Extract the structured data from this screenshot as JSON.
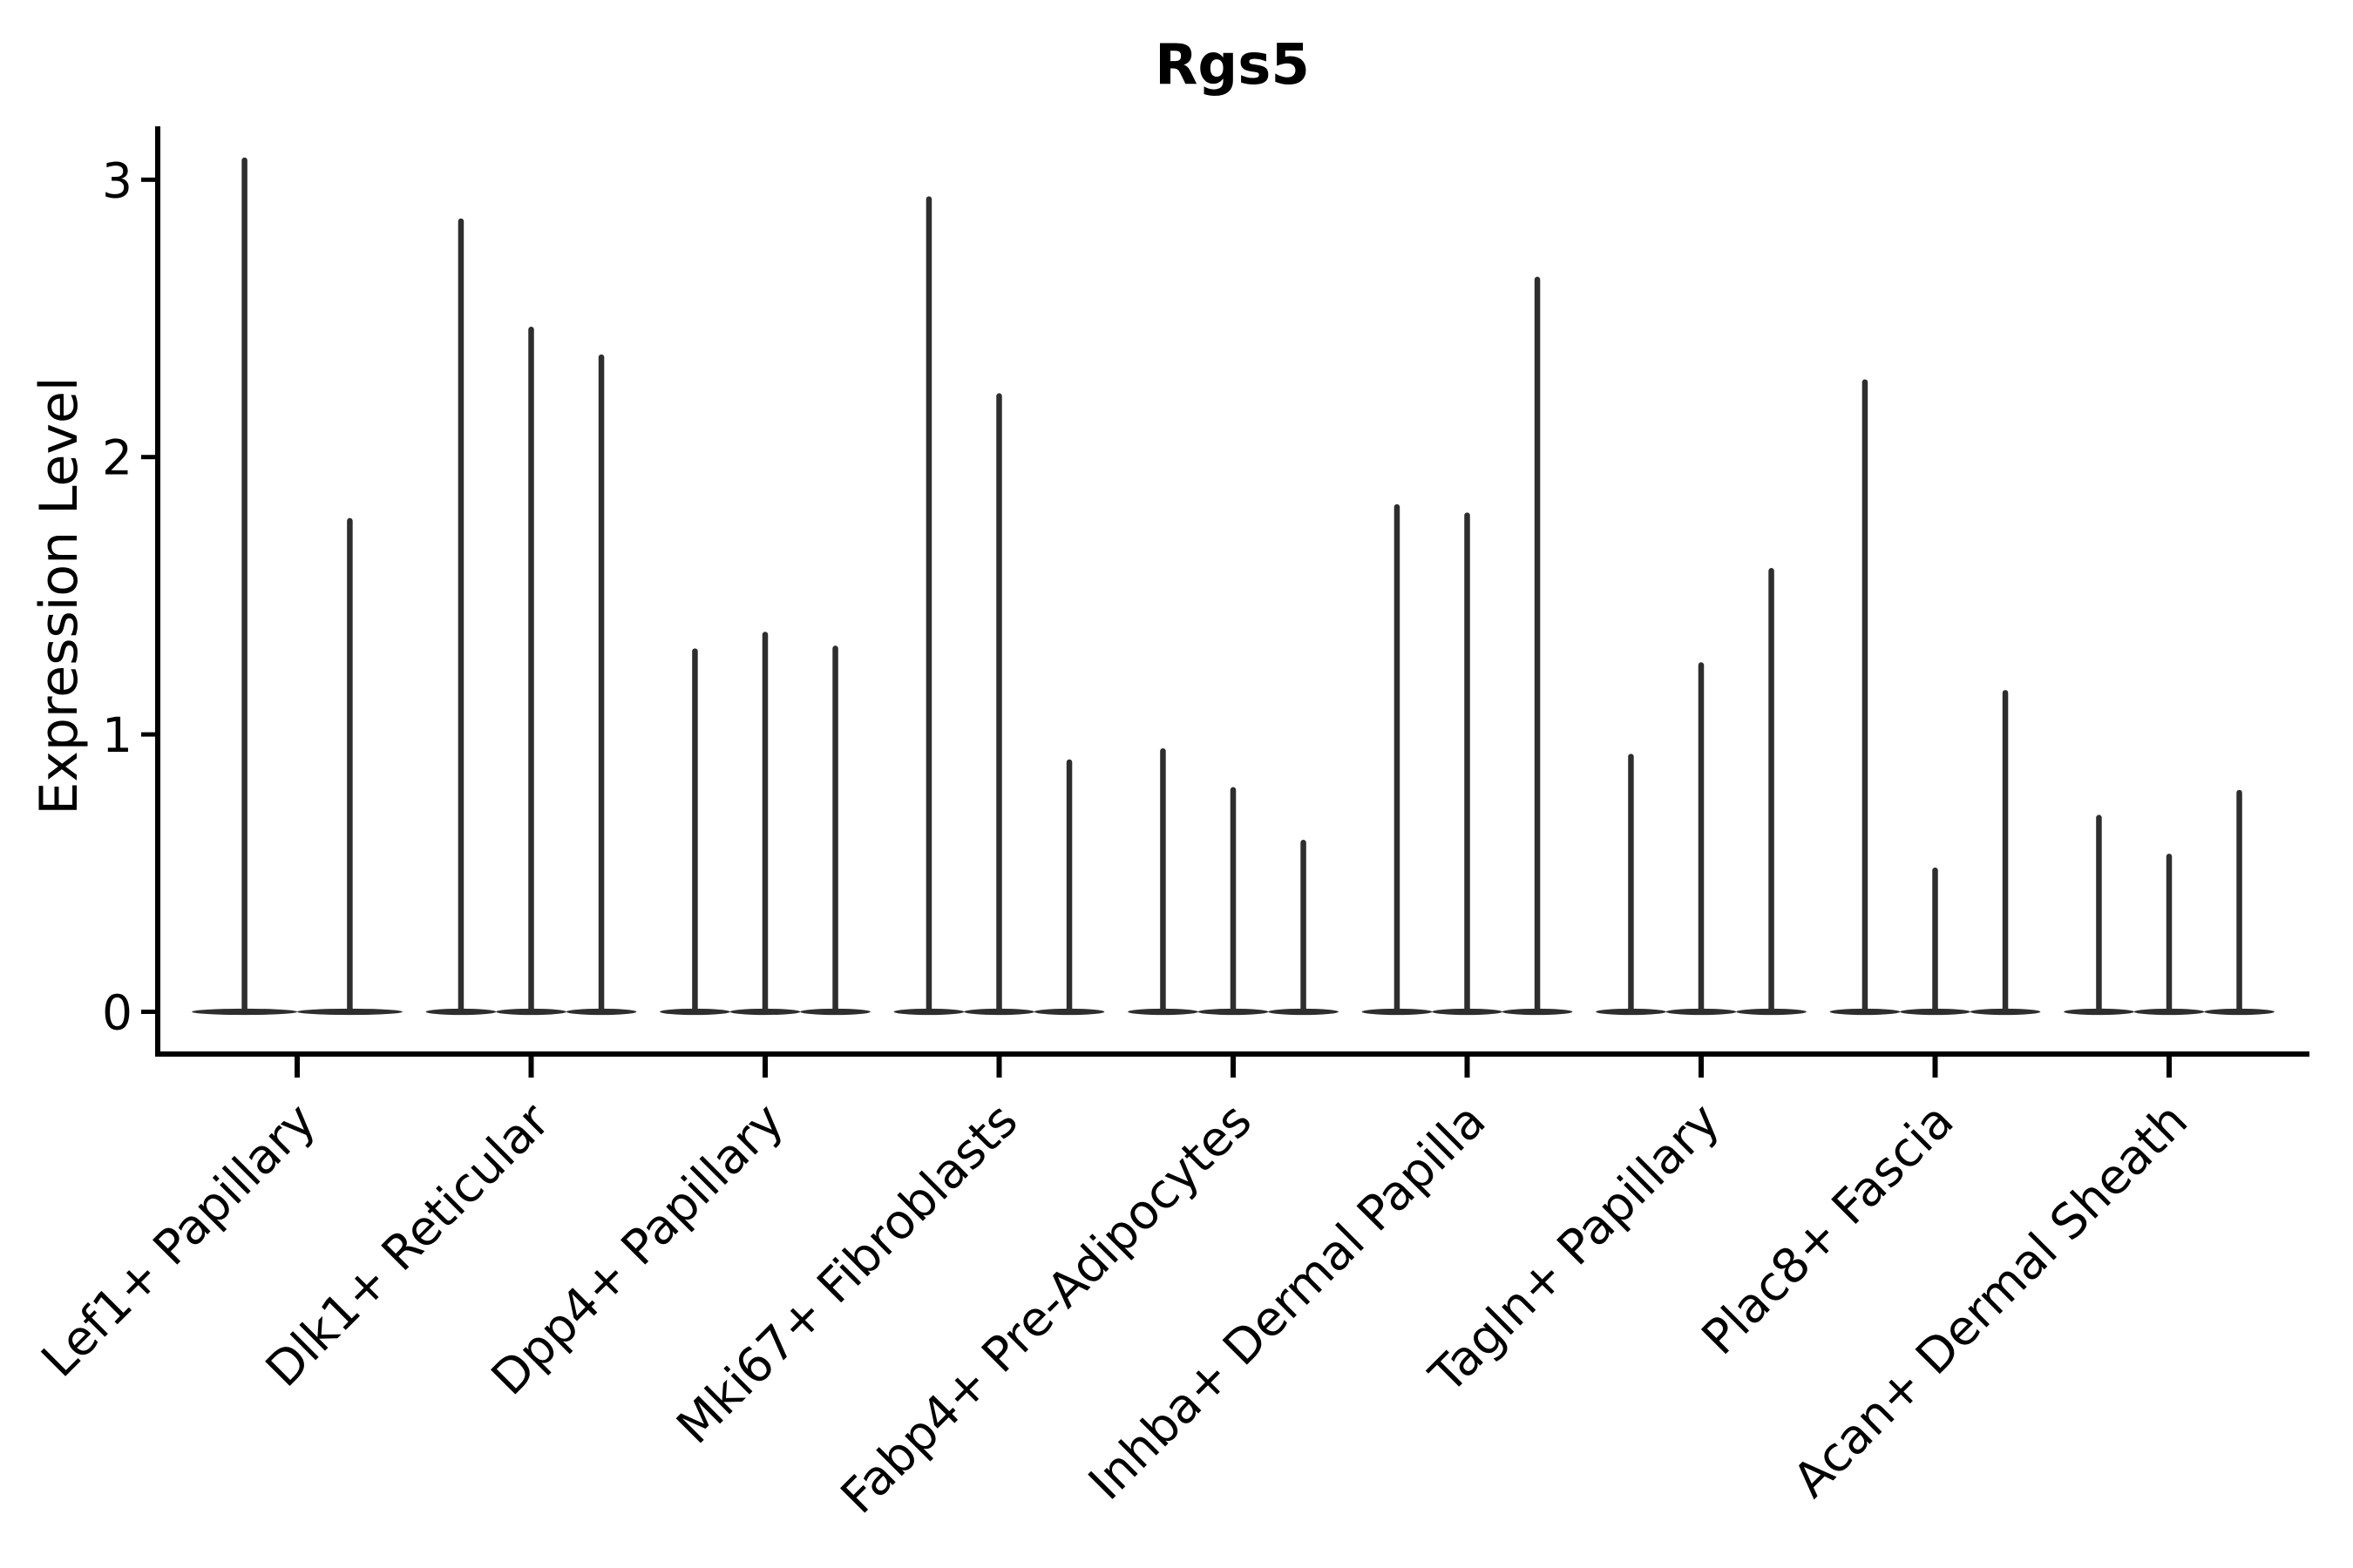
{
  "title": "Rgs5",
  "ylabel": "Expression Level",
  "colors": {
    "violin": "#2e2e2e",
    "axis": "#000000",
    "text": "#000000",
    "background": "#ffffff"
  },
  "chart_data": {
    "type": "violin",
    "title": "Rgs5",
    "xlabel": "",
    "ylabel": "Expression Level",
    "ylim": [
      0,
      3.3
    ],
    "yticks": [
      0,
      1,
      2,
      3
    ],
    "grid": false,
    "legend": "none",
    "description": "Stacked-thin violin plot; each category shows 2-3 near-zero-width violins (spikes) with flat dense bases at 0. Values below are each violin's maximum expression level.",
    "categories": [
      "Lef1+ Papillary",
      "Dlk1+ Reticular",
      "Dpp4+ Papillary",
      "Mki67+ Fibroblasts",
      "Fabp4+ Pre-Adipocytes",
      "Inhba+ Dermal Papilla",
      "Tagln+ Papillary",
      "Plac8+ Fascia",
      "Acan+ Dermal Sheath"
    ],
    "series": [
      {
        "category": "Lef1+ Papillary",
        "violin_max_values": [
          3.07,
          1.77
        ]
      },
      {
        "category": "Dlk1+ Reticular",
        "violin_max_values": [
          2.85,
          2.46,
          2.36
        ]
      },
      {
        "category": "Dpp4+ Papillary",
        "violin_max_values": [
          1.3,
          1.36,
          1.31
        ]
      },
      {
        "category": "Mki67+ Fibroblasts",
        "violin_max_values": [
          2.93,
          2.22,
          0.9
        ]
      },
      {
        "category": "Fabp4+ Pre-Adipocytes",
        "violin_max_values": [
          0.94,
          0.8,
          0.61
        ]
      },
      {
        "category": "Inhba+ Dermal Papilla",
        "violin_max_values": [
          1.82,
          1.79,
          2.64
        ]
      },
      {
        "category": "Tagln+ Papillary",
        "violin_max_values": [
          0.92,
          1.25,
          1.59
        ]
      },
      {
        "category": "Plac8+ Fascia",
        "violin_max_values": [
          2.27,
          0.51,
          1.15
        ]
      },
      {
        "category": "Acan+ Dermal Sheath",
        "violin_max_values": [
          0.7,
          0.56,
          0.79
        ]
      }
    ]
  }
}
